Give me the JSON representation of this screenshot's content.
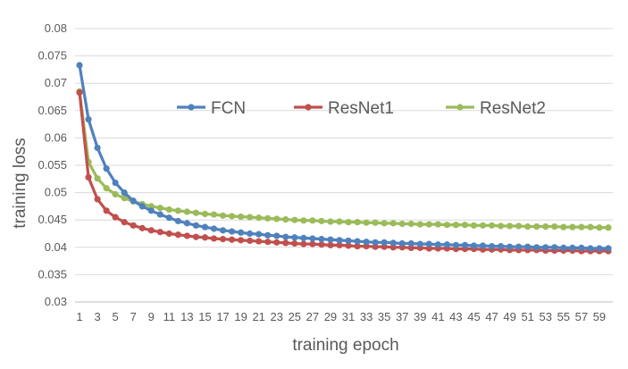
{
  "chart_data": {
    "type": "line",
    "title": "",
    "xlabel": "training epoch",
    "ylabel": "training loss",
    "x": [
      1,
      2,
      3,
      4,
      5,
      6,
      7,
      8,
      9,
      10,
      11,
      12,
      13,
      14,
      15,
      16,
      17,
      18,
      19,
      20,
      21,
      22,
      23,
      24,
      25,
      26,
      27,
      28,
      29,
      30,
      31,
      32,
      33,
      34,
      35,
      36,
      37,
      38,
      39,
      40,
      41,
      42,
      43,
      44,
      45,
      46,
      47,
      48,
      49,
      50,
      51,
      52,
      53,
      54,
      55,
      56,
      57,
      58,
      59,
      60
    ],
    "x_tick_labels": [
      "1",
      "3",
      "5",
      "7",
      "9",
      "11",
      "13",
      "15",
      "17",
      "19",
      "21",
      "23",
      "25",
      "27",
      "29",
      "31",
      "33",
      "35",
      "37",
      "39",
      "41",
      "43",
      "45",
      "47",
      "49",
      "51",
      "53",
      "55",
      "57",
      "59"
    ],
    "ylim": [
      0.03,
      0.08
    ],
    "y_tick_labels": [
      "0.03",
      "0.035",
      "0.04",
      "0.045",
      "0.05",
      "0.055",
      "0.06",
      "0.065",
      "0.07",
      "0.075",
      "0.08"
    ],
    "grid": "horizontal",
    "legend_position": "top-center",
    "series": [
      {
        "name": "FCN",
        "color": "#4f81bd",
        "values": [
          0.0733,
          0.0634,
          0.0582,
          0.0544,
          0.0518,
          0.05,
          0.0485,
          0.0475,
          0.0467,
          0.046,
          0.0454,
          0.0448,
          0.0444,
          0.044,
          0.0437,
          0.0434,
          0.0431,
          0.0429,
          0.0427,
          0.0425,
          0.0424,
          0.0422,
          0.0421,
          0.0419,
          0.0418,
          0.0417,
          0.0416,
          0.0415,
          0.0414,
          0.0413,
          0.0412,
          0.0411,
          0.041,
          0.0409,
          0.0409,
          0.0408,
          0.0407,
          0.0407,
          0.0406,
          0.0406,
          0.0405,
          0.0405,
          0.0404,
          0.0404,
          0.0403,
          0.0403,
          0.0402,
          0.0402,
          0.0401,
          0.0401,
          0.0401,
          0.04,
          0.04,
          0.04,
          0.0399,
          0.0399,
          0.0399,
          0.0398,
          0.0398,
          0.0398
        ]
      },
      {
        "name": "ResNet1",
        "color": "#c0504d",
        "values": [
          0.0683,
          0.0528,
          0.0488,
          0.0467,
          0.0455,
          0.0446,
          0.044,
          0.0435,
          0.0431,
          0.0428,
          0.0425,
          0.0423,
          0.0421,
          0.0419,
          0.0418,
          0.0416,
          0.0415,
          0.0414,
          0.0413,
          0.0412,
          0.0411,
          0.041,
          0.0409,
          0.0408,
          0.0407,
          0.0406,
          0.0406,
          0.0405,
          0.0404,
          0.0404,
          0.0403,
          0.0402,
          0.0402,
          0.0401,
          0.0401,
          0.04,
          0.04,
          0.0399,
          0.0399,
          0.0398,
          0.0398,
          0.0398,
          0.0397,
          0.0397,
          0.0397,
          0.0396,
          0.0396,
          0.0396,
          0.0395,
          0.0395,
          0.0395,
          0.0395,
          0.0394,
          0.0394,
          0.0394,
          0.0394,
          0.0393,
          0.0393,
          0.0393,
          0.0393
        ]
      },
      {
        "name": "ResNet2",
        "color": "#9bbb59",
        "values": [
          0.0685,
          0.0556,
          0.0526,
          0.0508,
          0.0497,
          0.049,
          0.0484,
          0.0479,
          0.0475,
          0.0472,
          0.0469,
          0.0467,
          0.0465,
          0.0463,
          0.0461,
          0.046,
          0.0458,
          0.0457,
          0.0456,
          0.0455,
          0.0454,
          0.0453,
          0.0452,
          0.0451,
          0.045,
          0.0449,
          0.0449,
          0.0448,
          0.0447,
          0.0447,
          0.0446,
          0.0446,
          0.0445,
          0.0445,
          0.0444,
          0.0444,
          0.0443,
          0.0443,
          0.0442,
          0.0442,
          0.0442,
          0.0441,
          0.0441,
          0.0441,
          0.044,
          0.044,
          0.044,
          0.0439,
          0.0439,
          0.0439,
          0.0438,
          0.0438,
          0.0438,
          0.0438,
          0.0437,
          0.0437,
          0.0437,
          0.0437,
          0.0436,
          0.0436
        ]
      }
    ]
  }
}
